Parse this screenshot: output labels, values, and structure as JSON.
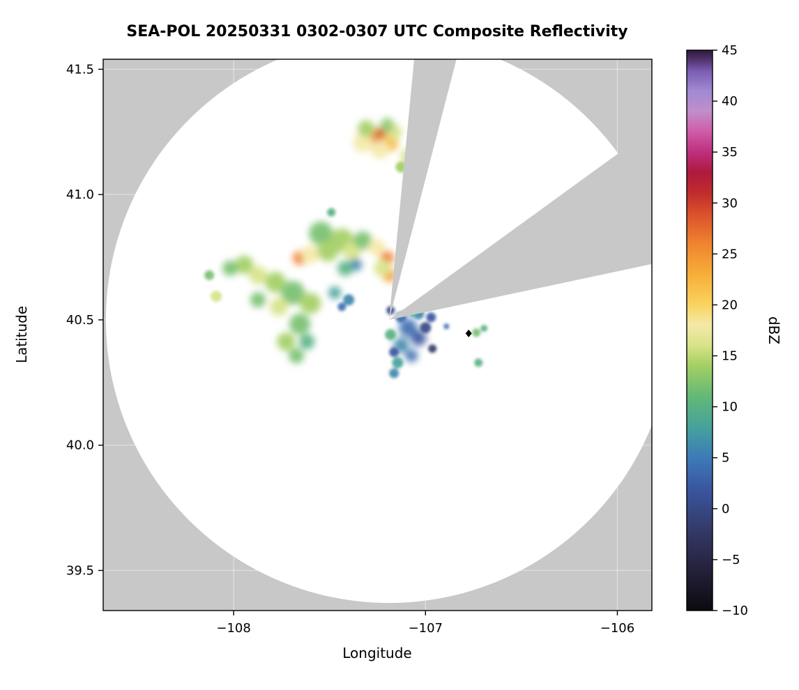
{
  "title": "SEA-POL 20250331 0302-0307 UTC Composite Reflectivity",
  "axes": {
    "xlabel": "Longitude",
    "ylabel": "Latitude",
    "xlim": [
      -108.68,
      -105.82
    ],
    "ylim": [
      39.34,
      41.54
    ],
    "x_ticks": [
      -108,
      -107,
      -106
    ],
    "x_tick_labels": [
      "−108",
      "−107",
      "−106"
    ],
    "y_ticks": [
      39.5,
      40.0,
      40.5,
      41.0,
      41.5
    ],
    "y_tick_labels": [
      "39.5",
      "40.0",
      "40.5",
      "41.0",
      "41.5"
    ]
  },
  "colorbar": {
    "label": "dBZ",
    "vmin": -10,
    "vmax": 45,
    "ticks": [
      -10,
      -5,
      0,
      5,
      10,
      15,
      20,
      25,
      30,
      35,
      40,
      45
    ],
    "tick_labels": [
      "−10",
      "−5",
      "0",
      "5",
      "10",
      "15",
      "20",
      "25",
      "30",
      "35",
      "40",
      "45"
    ],
    "stops": [
      {
        "v": -10,
        "c": "#0b0b0f"
      },
      {
        "v": -6,
        "c": "#24213a"
      },
      {
        "v": -2,
        "c": "#343a69"
      },
      {
        "v": 2,
        "c": "#3a57a0"
      },
      {
        "v": 5,
        "c": "#3d7ab8"
      },
      {
        "v": 8,
        "c": "#46a29b"
      },
      {
        "v": 11,
        "c": "#63b877"
      },
      {
        "v": 14,
        "c": "#a3cf63"
      },
      {
        "v": 16,
        "c": "#d7e388"
      },
      {
        "v": 18,
        "c": "#f4e9a8"
      },
      {
        "v": 20,
        "c": "#f8d45f"
      },
      {
        "v": 23,
        "c": "#f7ae39"
      },
      {
        "v": 26,
        "c": "#ef8430"
      },
      {
        "v": 29,
        "c": "#d94f2b"
      },
      {
        "v": 31,
        "c": "#c02c2c"
      },
      {
        "v": 33,
        "c": "#ad1a3e"
      },
      {
        "v": 35,
        "c": "#bd2f7e"
      },
      {
        "v": 37,
        "c": "#cf5ca8"
      },
      {
        "v": 39,
        "c": "#c08ecb"
      },
      {
        "v": 41,
        "c": "#a08ad2"
      },
      {
        "v": 43,
        "c": "#7a5bb0"
      },
      {
        "v": 44,
        "c": "#53356f"
      },
      {
        "v": 45,
        "c": "#2f1a3c"
      }
    ]
  },
  "chart_data": {
    "type": "heatmap",
    "subtype": "radar-composite-reflectivity-ppi",
    "title": "SEA-POL 20250331 0302-0307 UTC Composite Reflectivity",
    "xlabel": "Longitude",
    "ylabel": "Latitude",
    "value_units": "dBZ",
    "value_range": [
      -10,
      45
    ],
    "background_outside_range": "#c8c8c8",
    "background_in_range": "#ffffff",
    "grid_color": "#ffffff",
    "radar": {
      "center_lon": -107.19,
      "center_lat": 40.5,
      "range_deg_lon": 1.476,
      "blocked_sectors_deg_from_north": [
        [
          5.5,
          14.5
        ],
        [
          54,
          78
        ]
      ]
    },
    "marker": {
      "shape": "diamond",
      "color": "#000000",
      "lon": -106.775,
      "lat": 40.446
    },
    "echo_format": [
      "lon",
      "lat",
      "dbz",
      "size_px"
    ],
    "echoes": [
      [
        -107.236,
        41.221,
        30,
        16
      ],
      [
        -107.291,
        41.235,
        26,
        13
      ],
      [
        -107.189,
        41.207,
        22,
        13
      ],
      [
        -107.327,
        41.207,
        18,
        14
      ],
      [
        -107.236,
        41.179,
        18,
        13
      ],
      [
        -107.164,
        41.249,
        16,
        11
      ],
      [
        -107.091,
        41.152,
        16,
        11
      ],
      [
        -107.036,
        41.088,
        12,
        8
      ],
      [
        -107.127,
        41.11,
        14,
        8
      ],
      [
        -107.309,
        41.263,
        14,
        12
      ],
      [
        -107.2,
        41.277,
        13,
        10
      ],
      [
        -107.545,
        40.845,
        12,
        17
      ],
      [
        -107.436,
        40.817,
        14,
        17
      ],
      [
        -107.655,
        40.747,
        26,
        10
      ],
      [
        -107.6,
        40.761,
        18,
        13
      ],
      [
        -107.509,
        40.775,
        14,
        15
      ],
      [
        -107.382,
        40.775,
        16,
        13
      ],
      [
        -107.327,
        40.817,
        12,
        13
      ],
      [
        -107.255,
        40.789,
        18,
        12
      ],
      [
        -107.2,
        40.747,
        26,
        10
      ],
      [
        -107.189,
        40.678,
        24,
        10
      ],
      [
        -107.225,
        40.706,
        16,
        12
      ],
      [
        -107.364,
        40.72,
        6,
        9
      ],
      [
        -107.418,
        40.706,
        10,
        11
      ],
      [
        -107.945,
        40.72,
        14,
        13
      ],
      [
        -108.018,
        40.706,
        12,
        11
      ],
      [
        -107.873,
        40.678,
        16,
        13
      ],
      [
        -107.782,
        40.65,
        14,
        15
      ],
      [
        -107.691,
        40.608,
        12,
        17
      ],
      [
        -107.6,
        40.566,
        14,
        15
      ],
      [
        -107.764,
        40.552,
        16,
        13
      ],
      [
        -107.873,
        40.58,
        12,
        11
      ],
      [
        -107.655,
        40.483,
        12,
        15
      ],
      [
        -107.727,
        40.413,
        14,
        13
      ],
      [
        -107.673,
        40.357,
        12,
        11
      ],
      [
        -107.618,
        40.413,
        10,
        11
      ],
      [
        -108.091,
        40.594,
        16,
        8
      ],
      [
        -108.127,
        40.678,
        12,
        7
      ],
      [
        -107.473,
        40.608,
        8,
        9
      ],
      [
        -107.4,
        40.58,
        6,
        8
      ],
      [
        -107.436,
        40.552,
        4,
        6
      ],
      [
        -107.491,
        40.929,
        10,
        6
      ],
      [
        -107.091,
        40.469,
        4,
        13
      ],
      [
        -107.036,
        40.427,
        2,
        11
      ],
      [
        -107.127,
        40.399,
        6,
        11
      ],
      [
        -107.073,
        40.357,
        4,
        9
      ],
      [
        -107.145,
        40.329,
        8,
        8
      ],
      [
        -107.164,
        40.287,
        6,
        7
      ],
      [
        -107.0,
        40.469,
        0,
        8
      ],
      [
        -106.971,
        40.51,
        2,
        7
      ],
      [
        -107.036,
        40.524,
        6,
        8
      ],
      [
        -107.182,
        40.441,
        10,
        8
      ],
      [
        -107.127,
        40.51,
        4,
        8
      ],
      [
        -106.964,
        40.385,
        -2,
        6
      ],
      [
        -107.164,
        40.371,
        2,
        7
      ],
      [
        -107.182,
        40.538,
        0,
        6
      ],
      [
        -107.065,
        40.53,
        8,
        7
      ],
      [
        -106.735,
        40.449,
        12,
        6
      ],
      [
        -106.695,
        40.466,
        10,
        5
      ],
      [
        -106.724,
        40.329,
        10,
        6
      ],
      [
        -106.862,
        40.586,
        6,
        5
      ],
      [
        -106.891,
        40.474,
        4,
        4
      ]
    ]
  }
}
